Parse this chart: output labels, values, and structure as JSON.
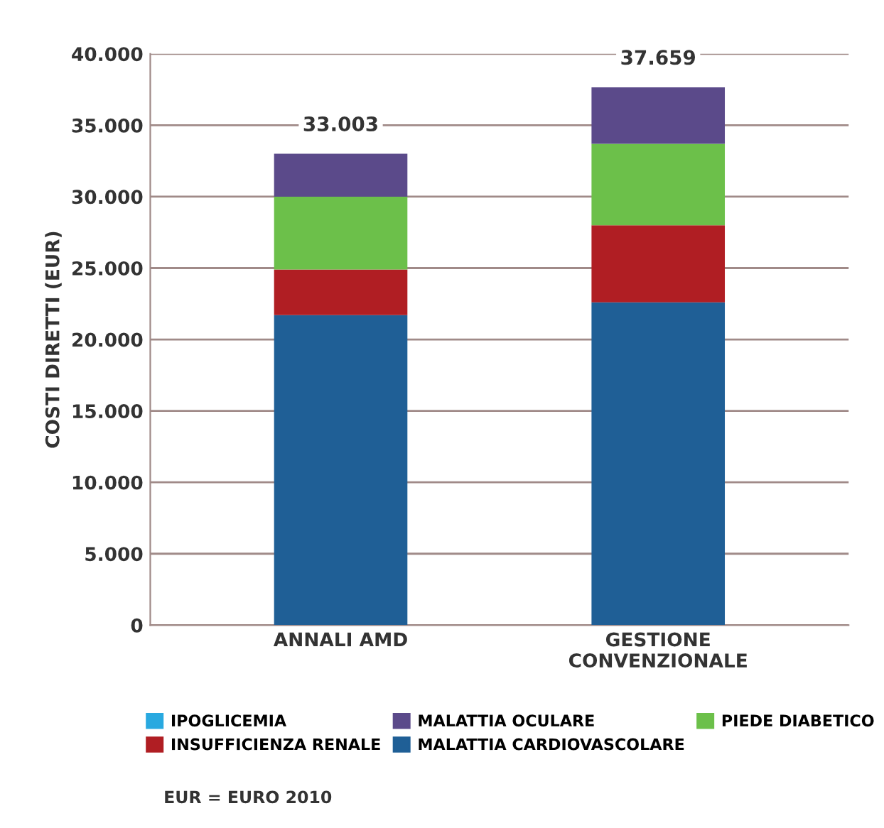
{
  "chart_data": {
    "type": "bar",
    "stacked": true,
    "ylabel": "COSTI DIRETTI (EUR)",
    "categories": [
      "ANNALI AMD",
      "GESTIONE\nCONVENZIONALE"
    ],
    "series": [
      {
        "name": "MALATTIA CARDIOVASCOLARE",
        "color": "#1f5f96",
        "values": [
          21700,
          22600
        ]
      },
      {
        "name": "INSUFFICIENZA RENALE",
        "color": "#b01e23",
        "values": [
          3200,
          5400
        ]
      },
      {
        "name": "PIEDE DIABETICO",
        "color": "#6cc04a",
        "values": [
          5100,
          5700
        ]
      },
      {
        "name": "MALATTIA OCULARE",
        "color": "#5b4a8a",
        "values": [
          3003,
          3959
        ]
      },
      {
        "name": "IPOGLICEMIA",
        "color": "#29a9e0",
        "values": [
          0,
          0
        ]
      }
    ],
    "totals": [
      "33.003",
      "37.659"
    ],
    "ylim": [
      0,
      40000
    ],
    "yticks": [
      0,
      {
        "value": 5000,
        "label": "5.000"
      },
      {
        "value": 10000,
        "label": "10.000"
      },
      {
        "value": 15000,
        "label": "15.000"
      },
      {
        "value": 20000,
        "label": "20.000"
      },
      {
        "value": 25000,
        "label": "25.000"
      },
      {
        "value": 30000,
        "label": "30.000"
      },
      {
        "value": 35000,
        "label": "35.000"
      },
      {
        "value": 40000,
        "label": "40.000"
      }
    ],
    "grid": "y",
    "legend": "bottom",
    "annotations": [
      "EUR = EURO 2010"
    ]
  }
}
